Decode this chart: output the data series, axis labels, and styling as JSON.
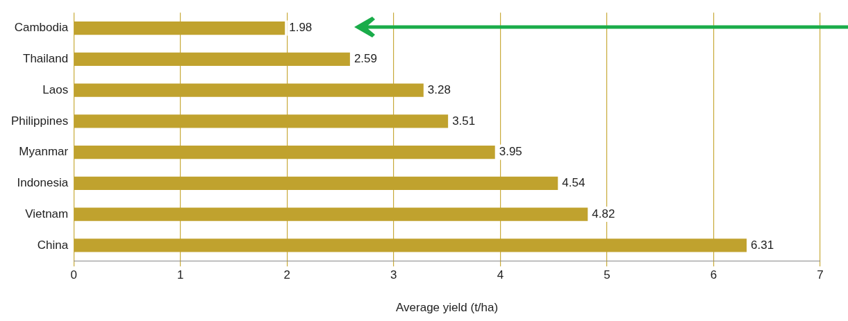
{
  "chart_data": {
    "type": "bar",
    "orientation": "horizontal",
    "xlabel": "Average yield (t/ha)",
    "categories": [
      "Cambodia",
      "Thailand",
      "Laos",
      "Philippines",
      "Myanmar",
      "Indonesia",
      "Vietnam",
      "China"
    ],
    "values": [
      1.98,
      2.59,
      3.28,
      3.51,
      3.95,
      4.54,
      4.82,
      6.31
    ],
    "color": "#c0a22e",
    "xlim": [
      0,
      7
    ],
    "xticks": [
      0,
      1,
      2,
      3,
      4,
      5,
      6,
      7
    ],
    "grid": "x",
    "data_labels": true,
    "legend": false
  }
}
